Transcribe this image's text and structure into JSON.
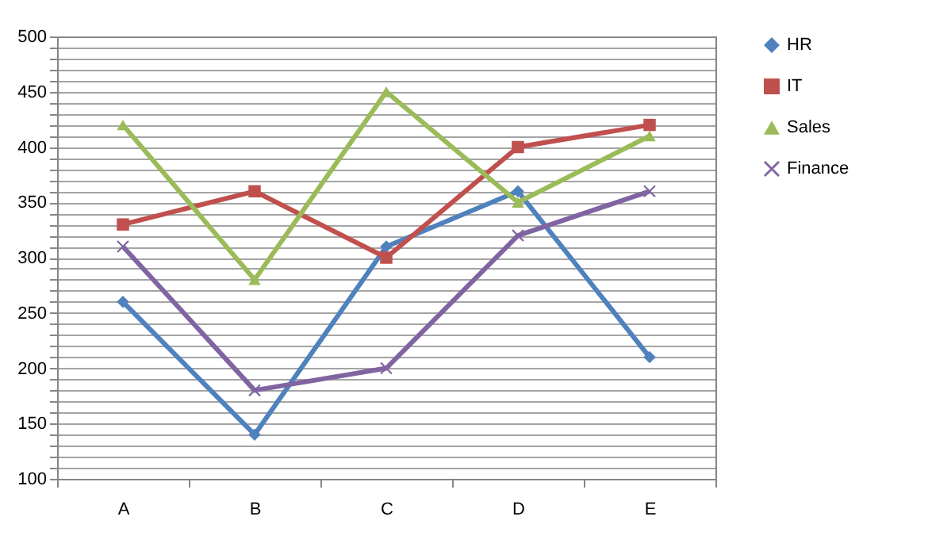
{
  "chart_data": {
    "type": "line",
    "categories": [
      "A",
      "B",
      "C",
      "D",
      "E"
    ],
    "series": [
      {
        "name": "HR",
        "color": "#4f81bd",
        "marker": "diamond",
        "values": [
          260,
          140,
          310,
          360,
          210
        ]
      },
      {
        "name": "IT",
        "color": "#c0504d",
        "marker": "square",
        "values": [
          330,
          360,
          300,
          400,
          420
        ]
      },
      {
        "name": "Sales",
        "color": "#9bbb59",
        "marker": "triangle",
        "values": [
          420,
          280,
          450,
          350,
          410
        ]
      },
      {
        "name": "Finance",
        "color": "#8064a2",
        "marker": "cross",
        "values": [
          310,
          180,
          200,
          320,
          360
        ]
      }
    ],
    "ylim": [
      100,
      500
    ],
    "yticks": [
      100,
      {
        "value": 110,
        "label": null
      },
      {
        "value": 120,
        "label": null
      },
      {
        "value": 130,
        "label": null
      },
      {
        "value": 140,
        "label": null
      },
      150,
      {
        "value": 160,
        "label": null
      },
      {
        "value": 170,
        "label": null
      },
      {
        "value": 180,
        "label": null
      },
      {
        "value": 190,
        "label": null
      },
      200,
      {
        "value": 210,
        "label": null
      },
      {
        "value": 220,
        "label": null
      },
      {
        "value": 230,
        "label": null
      },
      {
        "value": 240,
        "label": null
      },
      250,
      {
        "value": 260,
        "label": null
      },
      {
        "value": 270,
        "label": null
      },
      {
        "value": 280,
        "label": null
      },
      {
        "value": 290,
        "label": null
      },
      300,
      {
        "value": 310,
        "label": null
      },
      {
        "value": 320,
        "label": null
      },
      {
        "value": 330,
        "label": null
      },
      {
        "value": 340,
        "label": null
      },
      350,
      {
        "value": 360,
        "label": null
      },
      {
        "value": 370,
        "label": null
      },
      {
        "value": 380,
        "label": null
      },
      {
        "value": 390,
        "label": null
      },
      400,
      {
        "value": 410,
        "label": null
      },
      {
        "value": 420,
        "label": null
      },
      {
        "value": 430,
        "label": null
      },
      {
        "value": 440,
        "label": null
      },
      450,
      {
        "value": 460,
        "label": null
      },
      {
        "value": 470,
        "label": null
      },
      {
        "value": 480,
        "label": null
      },
      {
        "value": 490,
        "label": null
      },
      500
    ],
    "grid": "y",
    "legend": "right",
    "line_style": "solid"
  }
}
